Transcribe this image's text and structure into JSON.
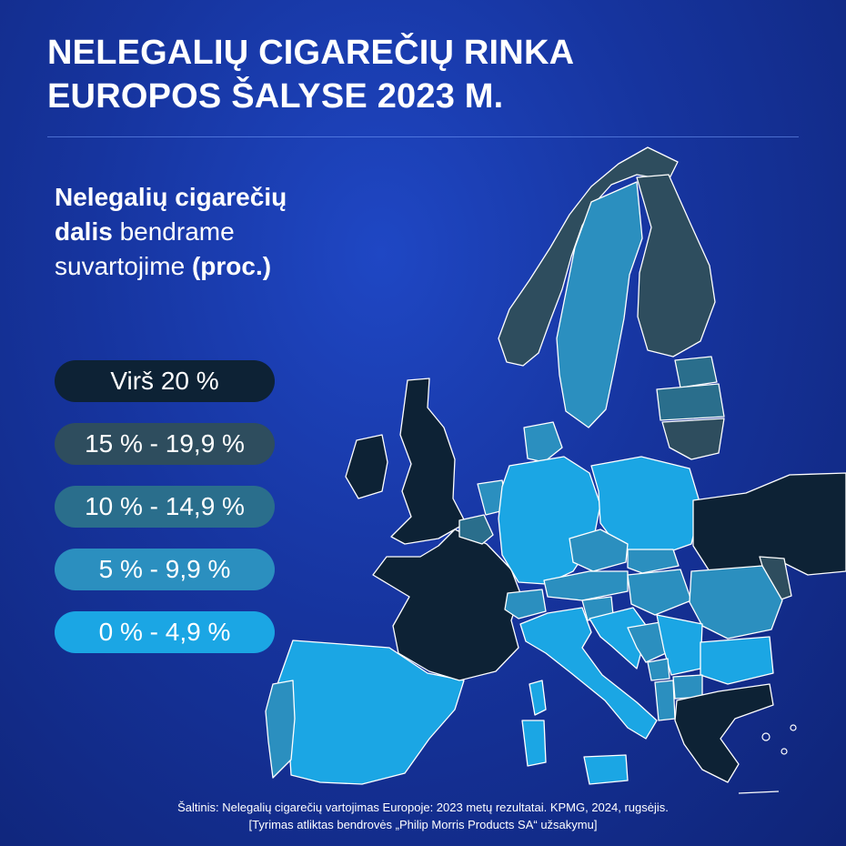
{
  "title": {
    "line1": "NELEGALIŲ CIGAREČIŲ RINKA",
    "line2": "EUROPOS ŠALYSE 2023 M."
  },
  "subtitle": {
    "line1_bold": "Nelegalių cigarečių",
    "line2_bold": "dalis",
    "line2_rest": " bendrame",
    "line3_rest": "suvartojime ",
    "line3_bold": "(proc.)"
  },
  "legend": [
    {
      "label": "Virš 20 %",
      "color": "#0d2235"
    },
    {
      "label": "15 % - 19,9 %",
      "color": "#2e4d5e"
    },
    {
      "label": "10 % - 14,9 %",
      "color": "#2a6e8c"
    },
    {
      "label": "5 % - 9,9 %",
      "color": "#2b8fbf"
    },
    {
      "label": "0 % - 4,9 %",
      "color": "#1ba6e4"
    }
  ],
  "source": {
    "line1": "Šaltinis: Nelegalių cigarečių vartojimas Europoje: 2023 metų rezultatai. KPMG, 2024, rugsėjis.",
    "line2": "[Tyrimas atliktas bendrovės „Philip Morris Products SA“ užsakymu]"
  },
  "colors": {
    "over_20": "#0d2235",
    "15_19_9": "#2e4d5e",
    "10_14_9": "#2a6e8c",
    "5_9_9": "#2b8fbf",
    "0_4_9": "#1ba6e4",
    "background": "#16349e"
  }
}
